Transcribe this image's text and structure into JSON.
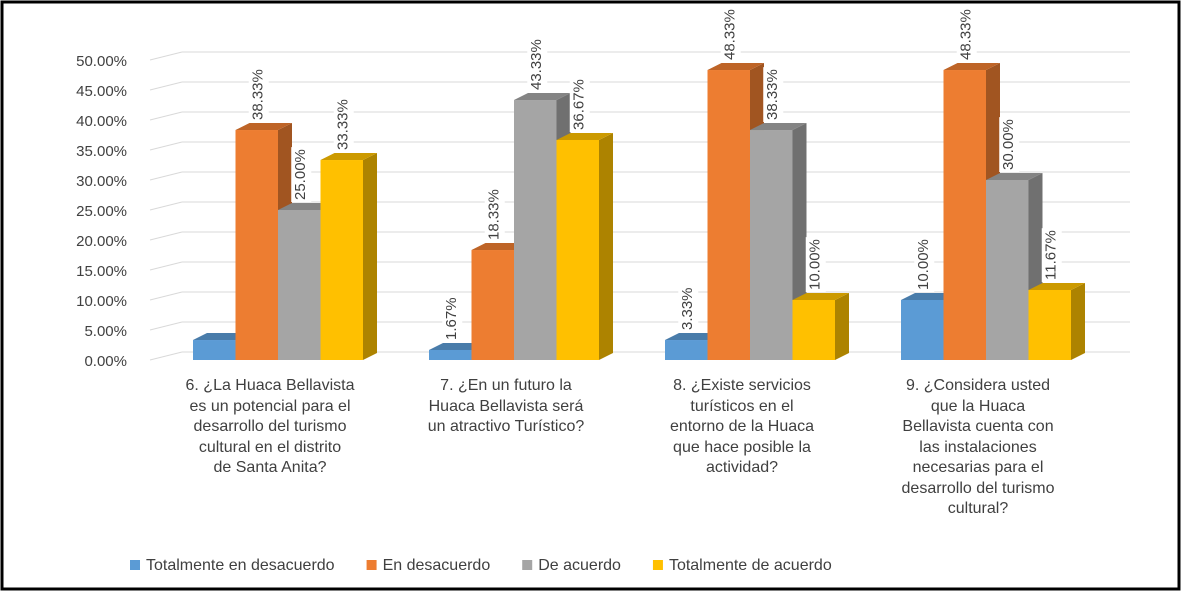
{
  "chart_data": {
    "type": "bar3d",
    "categories": [
      "6. ¿La Huaca Bellavista\nes un potencial para el\ndesarrollo del turismo\ncultural en el distrito\nde Santa Anita?",
      "7. ¿En un futuro la\nHuaca Bellavista será\nun atractivo Turístico?",
      "8. ¿Existe servicios\nturísticos en el\nentorno de la Huaca\nque hace posible la\nactividad?",
      "9. ¿Considera usted\nque la Huaca\nBellavista cuenta con\nlas instalaciones\nnecesarias para   el\ndesarrollo del turismo\ncultural?"
    ],
    "series": [
      {
        "name": "Totalmente en desacuerdo",
        "color": "#5b9bd5",
        "values": [
          3.33,
          1.67,
          3.33,
          10.0
        ],
        "value_labels": [
          null,
          "1.67%",
          "3.33%",
          "10.00%"
        ]
      },
      {
        "name": "En desacuerdo",
        "color": "#ed7d31",
        "values": [
          38.33,
          18.33,
          48.33,
          48.33
        ],
        "value_labels": [
          "38.33%",
          "18.33%",
          "48.33%",
          "48.33%"
        ]
      },
      {
        "name": "De acuerdo",
        "color": "#a5a5a5",
        "values": [
          25.0,
          43.33,
          38.33,
          30.0
        ],
        "value_labels": [
          "25.00%",
          "43.33%",
          "38.33%",
          "30.00%"
        ]
      },
      {
        "name": "Totalmente de acuerdo",
        "color": "#ffc000",
        "values": [
          33.33,
          36.67,
          10.0,
          11.67
        ],
        "value_labels": [
          "33.33%",
          "36.67%",
          "10.00%",
          "11.67%"
        ]
      }
    ],
    "ylim": [
      0,
      50
    ],
    "yticks": [
      {
        "value": 0,
        "label": "0.00%"
      },
      {
        "value": 5,
        "label": "5.00%"
      },
      {
        "value": 10,
        "label": "10.00%"
      },
      {
        "value": 15,
        "label": "15.00%"
      },
      {
        "value": 20,
        "label": "20.00%"
      },
      {
        "value": 25,
        "label": "25.00%"
      },
      {
        "value": 30,
        "label": "30.00%"
      },
      {
        "value": 35,
        "label": "35.00%"
      },
      {
        "value": 40,
        "label": "40.00%"
      },
      {
        "value": 45,
        "label": "45.00%"
      },
      {
        "value": 50,
        "label": "50.00%"
      }
    ],
    "grid": true,
    "legend": "bottom"
  }
}
